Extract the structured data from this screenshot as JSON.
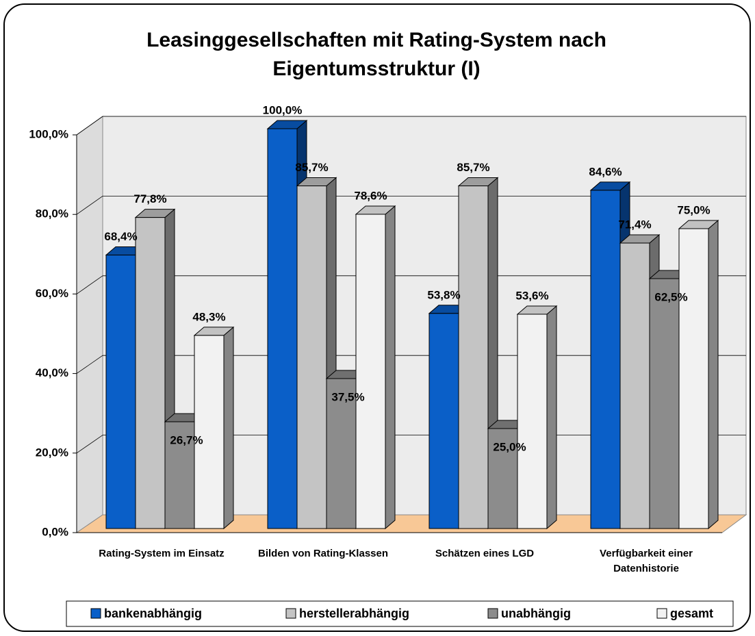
{
  "chart_data": {
    "type": "bar3d",
    "title": "Leasinggesellschaften mit Rating-System nach Eigentumsstruktur (I)",
    "categories": [
      "Rating-System im Einsatz",
      "Bilden von Rating-Klassen",
      "Schätzen eines LGD",
      "Verfügbarkeit einer Datenhistorie"
    ],
    "series": [
      {
        "name": "bankenabhängig",
        "color": "#0a5fc8",
        "values": [
          68.4,
          100.0,
          53.8,
          84.6
        ],
        "value_labels": [
          "68,4%",
          "100,0%",
          "53,8%",
          "84,6%"
        ]
      },
      {
        "name": "herstellerabhängig",
        "color": "#c4c4c4",
        "values": [
          77.8,
          85.7,
          85.7,
          71.4
        ],
        "value_labels": [
          "77,8%",
          "85,7%",
          "85,7%",
          "71,4%"
        ]
      },
      {
        "name": "unabhängig",
        "color": "#8c8c8c",
        "values": [
          26.7,
          37.5,
          25.0,
          62.5
        ],
        "value_labels": [
          "26,7%",
          "37,5%",
          "25,0%",
          "62,5%"
        ]
      },
      {
        "name": "gesamt",
        "color": "#f2f2f2",
        "values": [
          48.3,
          78.6,
          53.6,
          75.0
        ],
        "value_labels": [
          "48,3%",
          "78,6%",
          "53,6%",
          "75,0%"
        ]
      }
    ],
    "ylim": [
      0,
      100
    ],
    "yticks": [
      {
        "value": 0,
        "label": "0,0%"
      },
      {
        "value": 20,
        "label": "20,0%"
      },
      {
        "value": 40,
        "label": "40,0%"
      },
      {
        "value": 60,
        "label": "60,0%"
      },
      {
        "value": 80,
        "label": "80,0%"
      },
      {
        "value": 100,
        "label": "100,0%"
      }
    ],
    "grid": true,
    "legend": "bottom"
  }
}
